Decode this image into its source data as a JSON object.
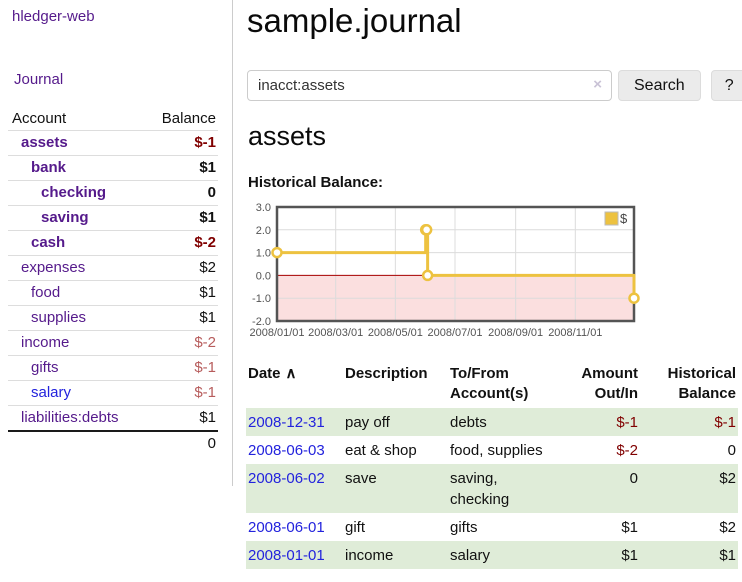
{
  "app": {
    "title": "hledger-web"
  },
  "colors": {
    "link_purple": "#551a8b",
    "link_blue": "#2323dd",
    "negative_dark": "#800000",
    "negative_light": "#b75c5c",
    "row_green": "#dfecd8",
    "chart_gold": "#edc240"
  },
  "sidebar": {
    "journal_label": "Journal",
    "accounts": {
      "headers": {
        "account": "Account",
        "balance": "Balance"
      },
      "rows": [
        {
          "name": "assets",
          "balance": "$-1"
        },
        {
          "name": "bank",
          "balance": "$1"
        },
        {
          "name": "checking",
          "balance": "0"
        },
        {
          "name": "saving",
          "balance": "$1"
        },
        {
          "name": "cash",
          "balance": "$-2"
        },
        {
          "name": "expenses",
          "balance": "$2"
        },
        {
          "name": "food",
          "balance": "$1"
        },
        {
          "name": "supplies",
          "balance": "$1"
        },
        {
          "name": "income",
          "balance": "$-2"
        },
        {
          "name": "gifts",
          "balance": "$-1"
        },
        {
          "name": "salary",
          "balance": "$-1"
        },
        {
          "name": "liabilities:debts",
          "balance": "$1"
        }
      ],
      "total": "0"
    }
  },
  "main": {
    "title": "sample.journal",
    "search": {
      "value": "inacct:assets",
      "clear_icon": "×",
      "button_label": "Search",
      "help_label": "?"
    },
    "account_heading": "assets",
    "chart_label": "Historical Balance:"
  },
  "chart_data": {
    "type": "line",
    "step": true,
    "title": "Historical Balance",
    "series": [
      {
        "name": "$",
        "color": "#edc240",
        "points": [
          [
            "2008-01-01",
            1
          ],
          [
            "2008-06-01",
            2
          ],
          [
            "2008-06-02",
            2
          ],
          [
            "2008-06-03",
            0
          ],
          [
            "2008-12-31",
            -1
          ]
        ]
      }
    ],
    "x_range": [
      "2008-01-01",
      "2008-12-31"
    ],
    "ylim": [
      -2,
      3
    ],
    "yticks": [
      "3.0",
      "2.0",
      "1.0",
      "0.0",
      "-1.0",
      "-2.0"
    ],
    "xticks": [
      "2008/01/01",
      "2008/03/01",
      "2008/05/01",
      "2008/07/01",
      "2008/09/01",
      "2008/11/01"
    ],
    "grid": true,
    "negative_fill": "#fbdfdf",
    "zero_line_color": "#aa0000",
    "legend": {
      "label": "$",
      "position": "top-right"
    }
  },
  "register": {
    "headers": {
      "date": "Date",
      "sort_icon": "∧",
      "description": "Description",
      "accounts": "To/From Account(s)",
      "amount": "Amount Out/In",
      "balance": "Historical Balance"
    },
    "rows": [
      {
        "date": "2008-12-31",
        "description": "pay off",
        "accounts": "debts",
        "amount": "$-1",
        "balance": "$-1"
      },
      {
        "date": "2008-06-03",
        "description": "eat & shop",
        "accounts": "food, supplies",
        "amount": "$-2",
        "balance": "0"
      },
      {
        "date": "2008-06-02",
        "description": "save",
        "accounts": "saving, checking",
        "amount": "0",
        "balance": "$2"
      },
      {
        "date": "2008-06-01",
        "description": "gift",
        "accounts": "gifts",
        "amount": "$1",
        "balance": "$2"
      },
      {
        "date": "2008-01-01",
        "description": "income",
        "accounts": "salary",
        "amount": "$1",
        "balance": "$1"
      }
    ]
  }
}
